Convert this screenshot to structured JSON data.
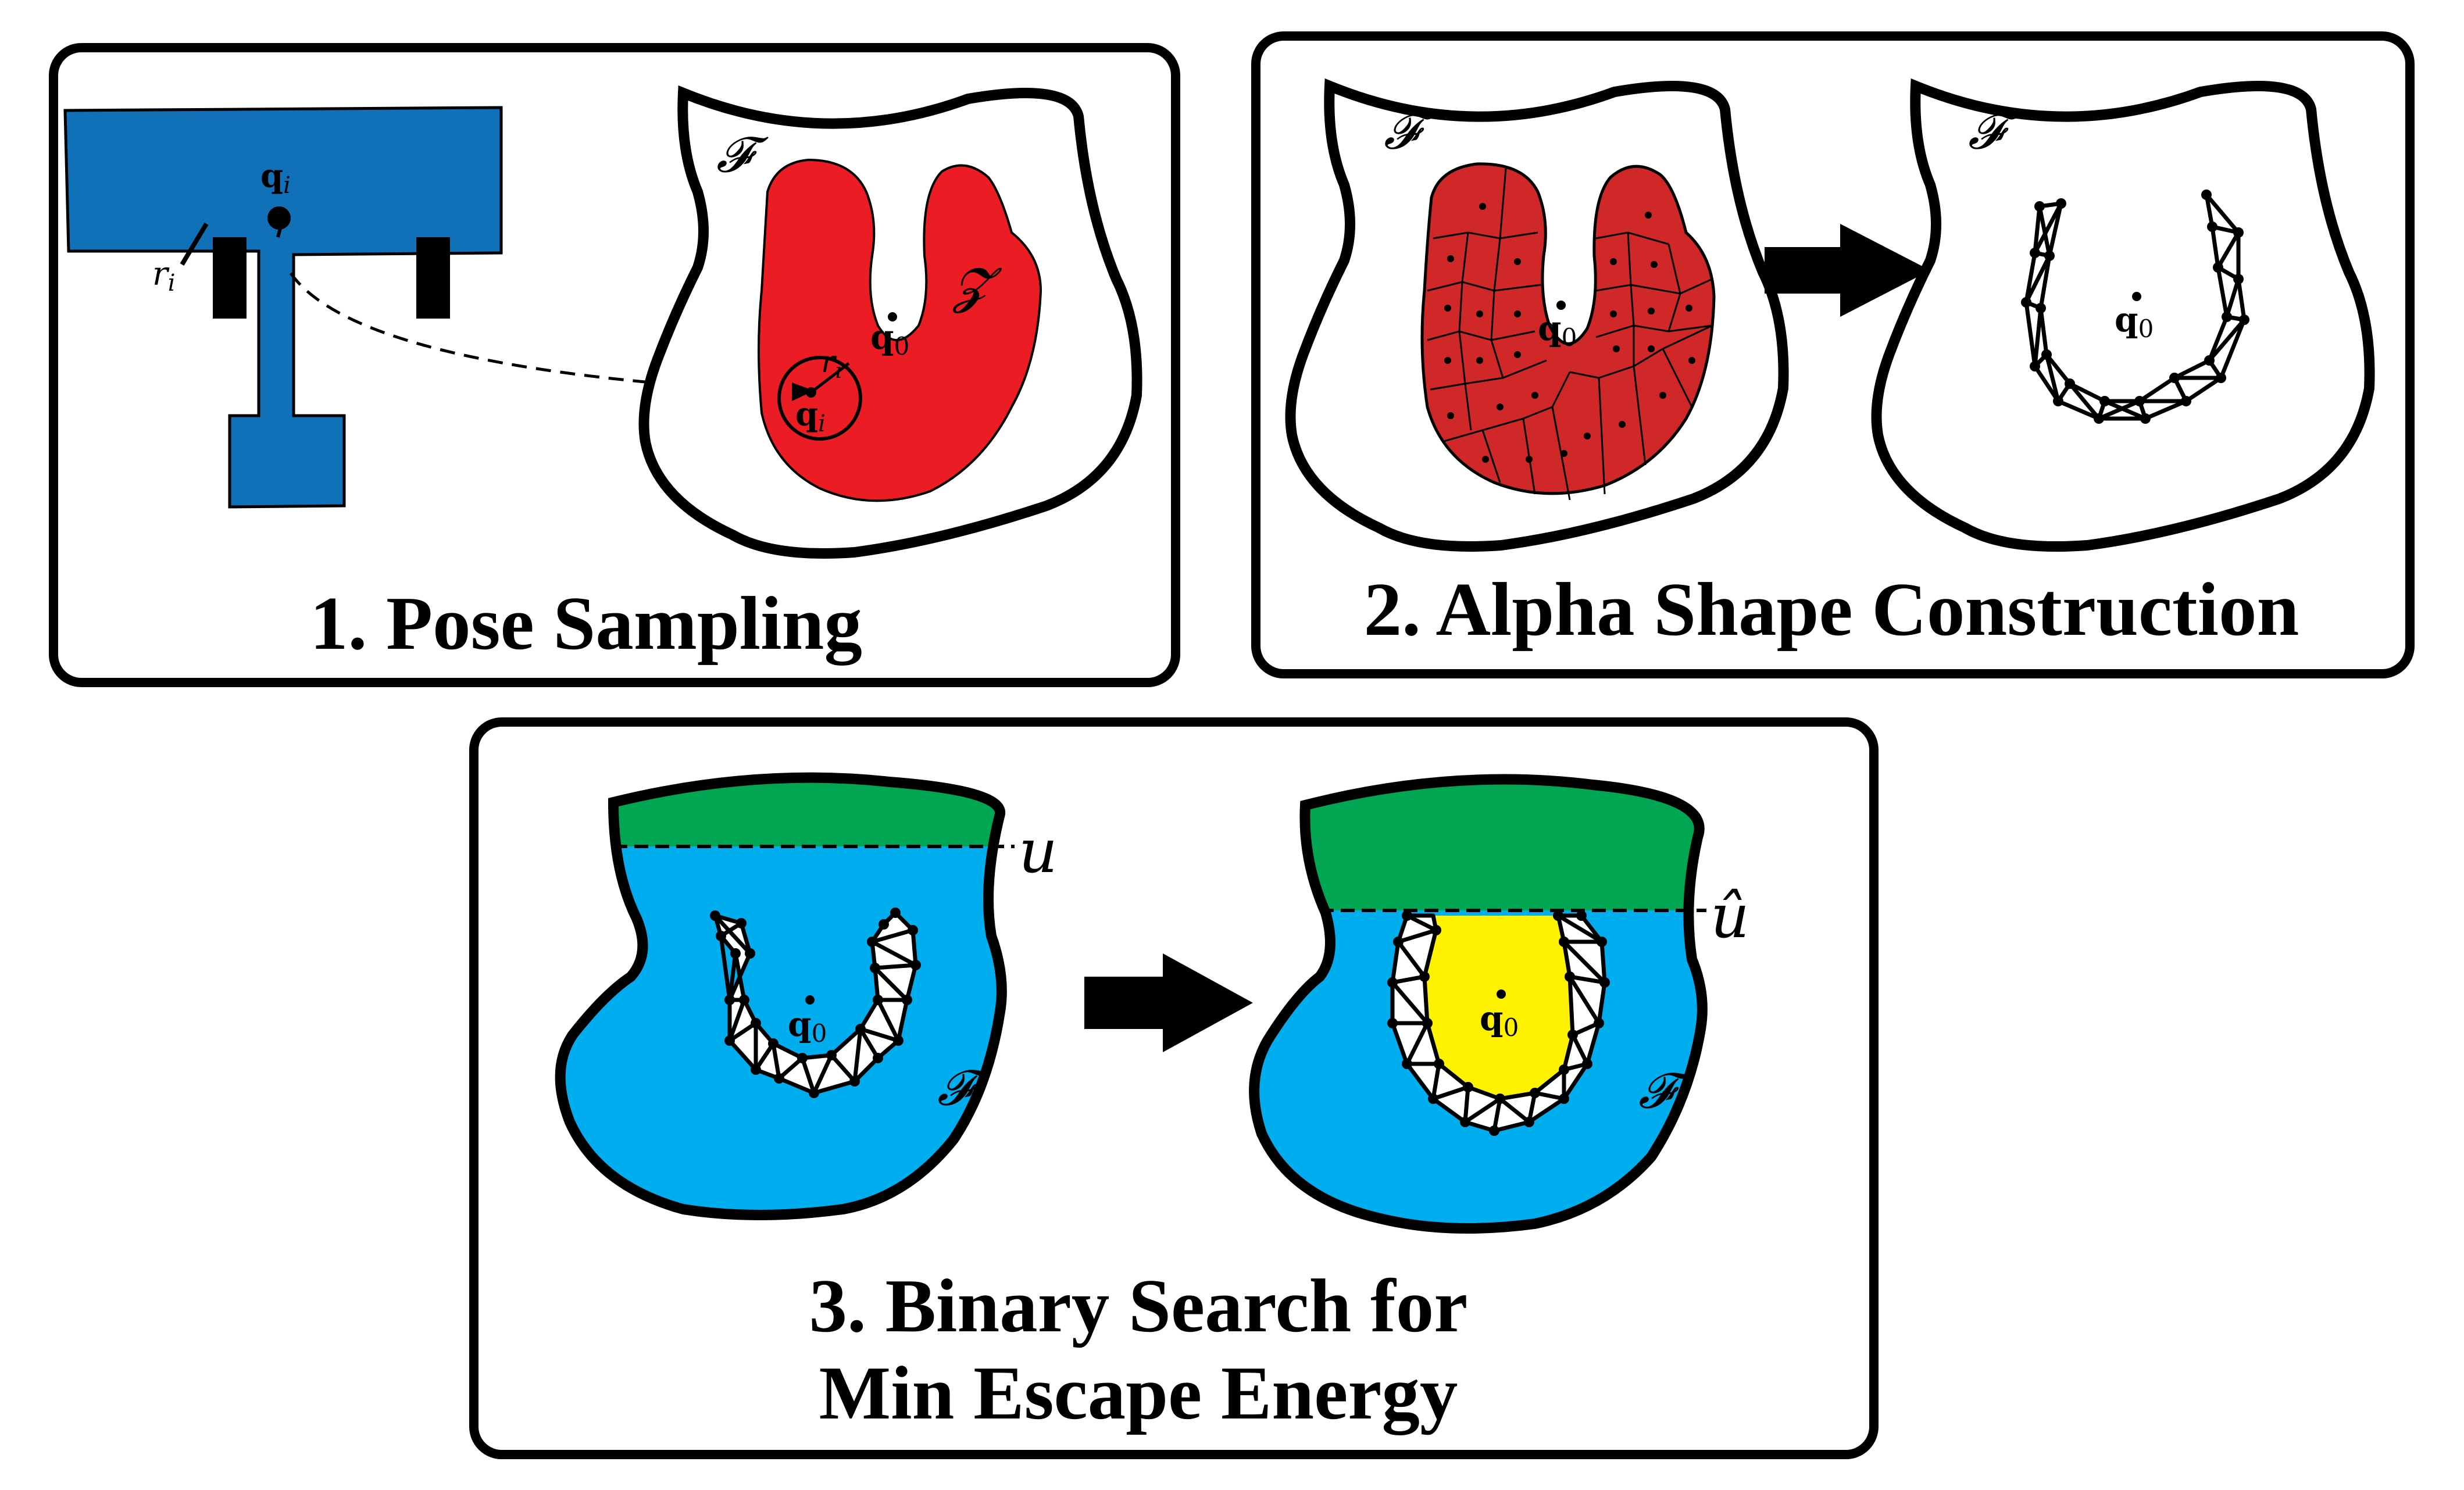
{
  "colors": {
    "robot_blue": "#1070b8",
    "object_red": "#ec1c24",
    "voronoi_red": "#d02828",
    "goal_green": "#00a651",
    "free_blue": "#00aeef",
    "trapped_yellow": "#fff200"
  },
  "panels": {
    "p1": {
      "title": "1. Pose Sampling",
      "labels": {
        "F": "𝓕",
        "Z": "𝓩",
        "q": "q",
        "sub_i": "i",
        "sub_0": "0",
        "r": "r"
      }
    },
    "p2": {
      "title": "2. Alpha Shape Construction",
      "labels": {
        "F": "𝓕",
        "q": "q",
        "sub_0": "0"
      }
    },
    "p3": {
      "title_line1": "3. Binary Search for",
      "title_line2": "Min Escape Energy",
      "labels": {
        "F": "𝓕",
        "q": "q",
        "sub_0": "0",
        "u": "u",
        "u_hat": "û"
      }
    }
  }
}
